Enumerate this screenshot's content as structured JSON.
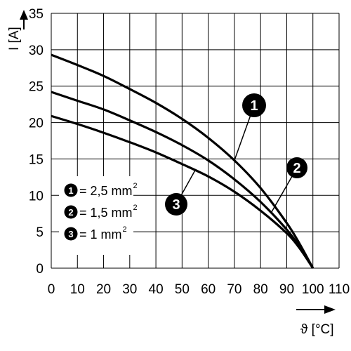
{
  "chart_data": {
    "type": "line",
    "title": "",
    "xlabel": "ϑ [°C]",
    "ylabel": "I [A]",
    "xlim": [
      0,
      110
    ],
    "ylim": [
      0,
      35
    ],
    "x_ticks": [
      0,
      10,
      20,
      30,
      40,
      50,
      60,
      70,
      80,
      90,
      100,
      110
    ],
    "y_ticks": [
      0,
      5,
      10,
      15,
      20,
      25,
      30,
      35
    ],
    "grid": true,
    "legend_position": "bottom-left",
    "series": [
      {
        "marker": "1",
        "name": "= 2,5 mm",
        "unit_sup": "2",
        "x": [
          0,
          10,
          20,
          30,
          40,
          50,
          60,
          70,
          80,
          90,
          95,
          100
        ],
        "y": [
          29.3,
          27.9,
          26.4,
          24.6,
          22.7,
          20.5,
          17.9,
          14.8,
          11.0,
          6.2,
          3.3,
          0
        ]
      },
      {
        "marker": "2",
        "name": "= 1,5 mm",
        "unit_sup": "2",
        "x": [
          0,
          10,
          20,
          30,
          40,
          50,
          60,
          70,
          80,
          90,
          95,
          100
        ],
        "y": [
          24.2,
          23.0,
          21.8,
          20.3,
          18.7,
          16.9,
          14.8,
          12.2,
          9.1,
          5.3,
          2.9,
          0
        ]
      },
      {
        "marker": "3",
        "name": "= 1 mm",
        "unit_sup": "2",
        "x": [
          0,
          10,
          20,
          30,
          40,
          50,
          60,
          70,
          80,
          90,
          95,
          100
        ],
        "y": [
          20.9,
          19.8,
          18.6,
          17.3,
          15.9,
          14.3,
          12.6,
          10.5,
          7.9,
          4.8,
          2.7,
          0
        ]
      }
    ]
  }
}
